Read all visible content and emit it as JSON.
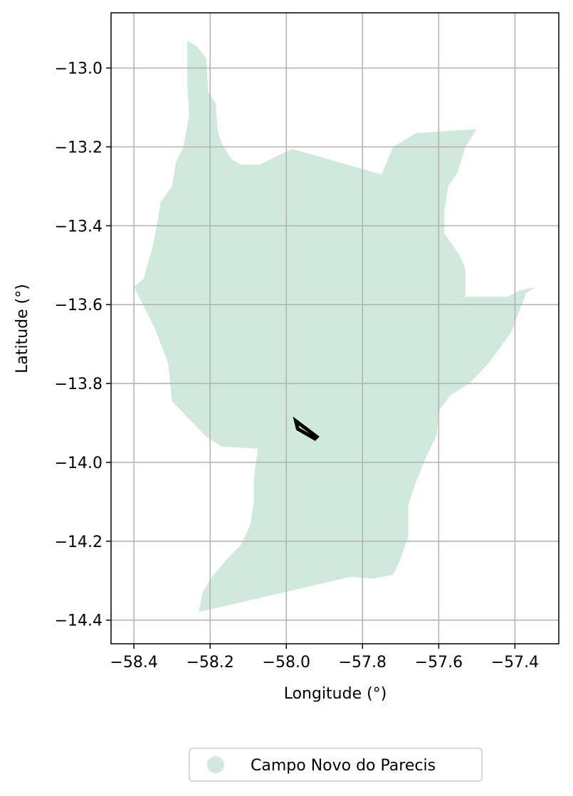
{
  "chart_data": {
    "type": "map",
    "title": "",
    "xlabel": "Longitude (°)",
    "ylabel": "Latitude (°)",
    "xlim": [
      -58.46,
      -57.285
    ],
    "ylim": [
      -14.46,
      -12.86
    ],
    "xticks": [
      -58.4,
      -58.2,
      -58.0,
      -57.8,
      -57.6,
      -57.4
    ],
    "yticks": [
      -13.0,
      -13.2,
      -13.4,
      -13.6,
      -13.8,
      -14.0,
      -14.2,
      -14.4
    ],
    "xtick_labels": [
      "−58.4",
      "−58.2",
      "−58.0",
      "−57.8",
      "−57.6",
      "−57.4"
    ],
    "ytick_labels": [
      "−13.0",
      "−13.2",
      "−13.4",
      "−13.6",
      "−13.8",
      "−14.0",
      "−14.2",
      "−14.4"
    ],
    "grid": true,
    "legend": {
      "placement": "bottom-center",
      "entries": [
        {
          "label": "Campo Novo do Parecis",
          "color": "#cfeadd"
        }
      ]
    },
    "fill_color": "#cfeadd",
    "outline_color": "#000000",
    "region_polygon": [
      [
        -58.26,
        -12.93
      ],
      [
        -58.235,
        -12.945
      ],
      [
        -58.21,
        -12.975
      ],
      [
        -58.205,
        -13.06
      ],
      [
        -58.185,
        -13.09
      ],
      [
        -58.18,
        -13.16
      ],
      [
        -58.17,
        -13.19
      ],
      [
        -58.145,
        -13.23
      ],
      [
        -58.12,
        -13.245
      ],
      [
        -58.07,
        -13.245
      ],
      [
        -57.985,
        -13.205
      ],
      [
        -57.75,
        -13.27
      ],
      [
        -57.72,
        -13.2
      ],
      [
        -57.66,
        -13.165
      ],
      [
        -57.5,
        -13.155
      ],
      [
        -57.51,
        -13.17
      ],
      [
        -57.53,
        -13.2
      ],
      [
        -57.55,
        -13.265
      ],
      [
        -57.575,
        -13.3
      ],
      [
        -57.585,
        -13.36
      ],
      [
        -57.585,
        -13.42
      ],
      [
        -57.545,
        -13.475
      ],
      [
        -57.53,
        -13.51
      ],
      [
        -57.53,
        -13.58
      ],
      [
        -57.42,
        -13.58
      ],
      [
        -57.39,
        -13.565
      ],
      [
        -57.345,
        -13.555
      ],
      [
        -57.37,
        -13.57
      ],
      [
        -57.39,
        -13.62
      ],
      [
        -57.41,
        -13.67
      ],
      [
        -57.44,
        -13.71
      ],
      [
        -57.47,
        -13.75
      ],
      [
        -57.52,
        -13.8
      ],
      [
        -57.57,
        -13.83
      ],
      [
        -57.6,
        -13.87
      ],
      [
        -57.605,
        -13.93
      ],
      [
        -57.63,
        -13.98
      ],
      [
        -57.66,
        -14.05
      ],
      [
        -57.68,
        -14.11
      ],
      [
        -57.68,
        -14.19
      ],
      [
        -57.7,
        -14.245
      ],
      [
        -57.72,
        -14.285
      ],
      [
        -57.775,
        -14.295
      ],
      [
        -57.83,
        -14.29
      ],
      [
        -58.23,
        -14.38
      ],
      [
        -58.22,
        -14.33
      ],
      [
        -58.195,
        -14.29
      ],
      [
        -58.16,
        -14.25
      ],
      [
        -58.12,
        -14.21
      ],
      [
        -58.095,
        -14.16
      ],
      [
        -58.085,
        -14.1
      ],
      [
        -58.085,
        -14.04
      ],
      [
        -58.075,
        -13.965
      ],
      [
        -58.17,
        -13.96
      ],
      [
        -58.21,
        -13.935
      ],
      [
        -58.245,
        -13.9
      ],
      [
        -58.3,
        -13.845
      ],
      [
        -58.31,
        -13.75
      ],
      [
        -58.345,
        -13.66
      ],
      [
        -58.4,
        -13.555
      ],
      [
        -58.375,
        -13.535
      ],
      [
        -58.365,
        -13.5
      ],
      [
        -58.35,
        -13.45
      ],
      [
        -58.34,
        -13.4
      ],
      [
        -58.33,
        -13.34
      ],
      [
        -58.3,
        -13.3
      ],
      [
        -58.29,
        -13.24
      ],
      [
        -58.27,
        -13.2
      ],
      [
        -58.255,
        -13.12
      ],
      [
        -58.26,
        -13.04
      ]
    ],
    "outlined_feature": [
      [
        -57.975,
        -13.895
      ],
      [
        -57.92,
        -13.935
      ],
      [
        -57.925,
        -13.94
      ],
      [
        -57.97,
        -13.915
      ]
    ]
  }
}
